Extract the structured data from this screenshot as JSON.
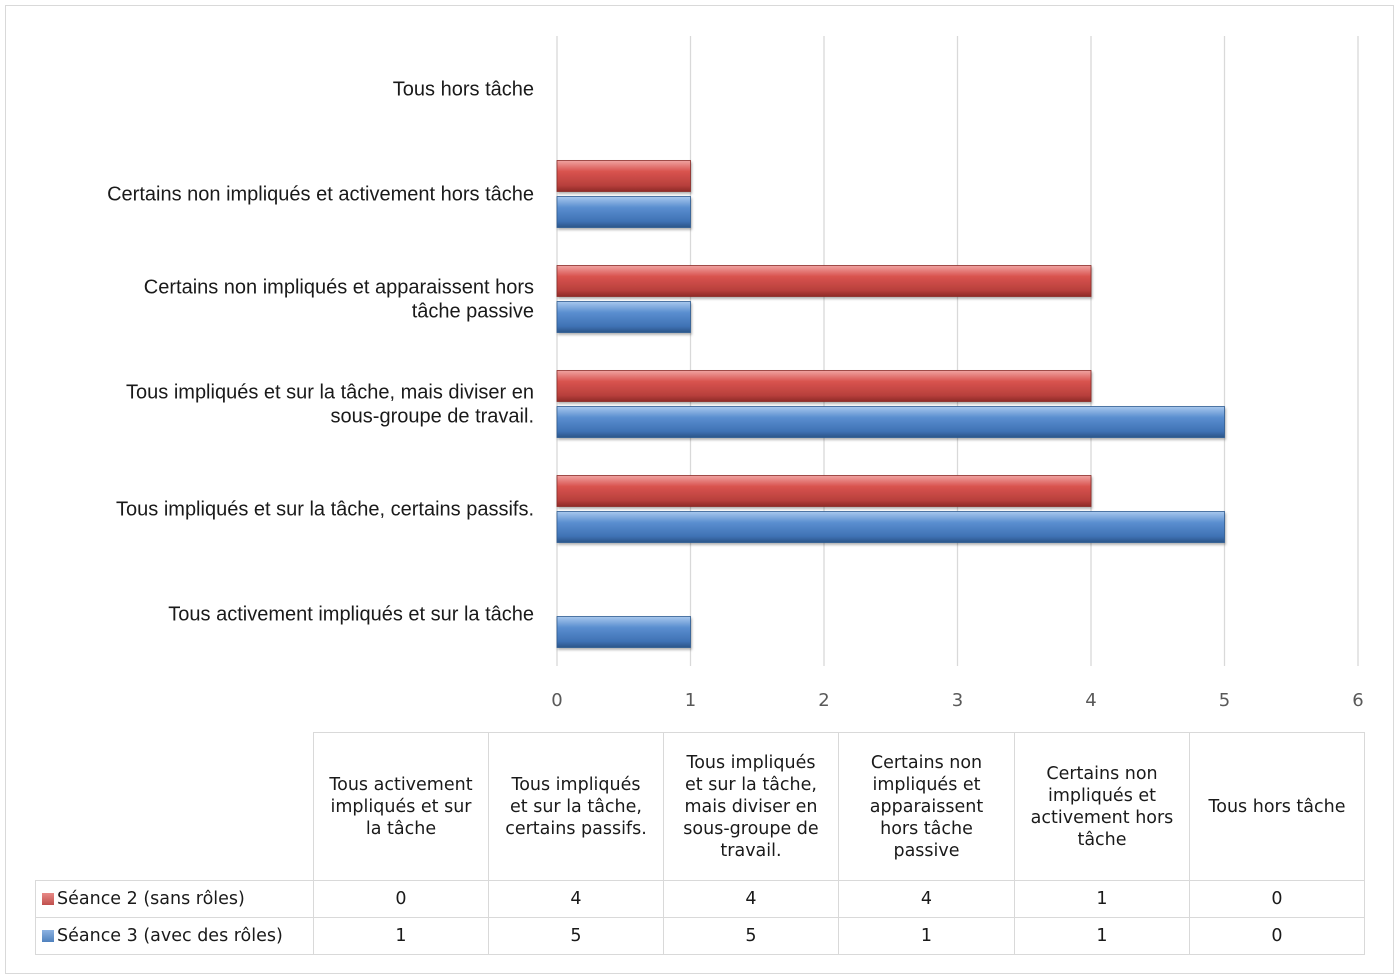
{
  "chart_data": {
    "type": "bar",
    "orientation": "horizontal",
    "categories": [
      "Tous activement impliqués et sur la tâche",
      "Tous impliqués et sur la tâche, certains passifs.",
      "Tous impliqués et sur la tâche, mais diviser en sous-groupe de travail.",
      "Certains non impliqués et apparaissent hors tâche passive",
      "Certains non impliqués et activement hors tâche",
      "Tous hors tâche"
    ],
    "category_label_lines": [
      [
        "Tous activement impliqués et sur la tâche"
      ],
      [
        "Tous impliqués et sur la tâche, certains passifs."
      ],
      [
        "Tous impliqués et sur la tâche, mais diviser en",
        "sous-groupe de travail."
      ],
      [
        "Certains non impliqués et apparaissent hors",
        "tâche passive"
      ],
      [
        "Certains non impliqués et activement hors tâche"
      ],
      [
        "Tous hors tâche"
      ]
    ],
    "series": [
      {
        "name": "Séance 2 (sans rôles)",
        "values": [
          0,
          4,
          4,
          4,
          1,
          0
        ],
        "color": "#c0504d"
      },
      {
        "name": "Séance 3 (avec des rôles)",
        "values": [
          1,
          5,
          5,
          1,
          1,
          0
        ],
        "color": "#4f81bd"
      }
    ],
    "xlim": [
      0,
      6
    ],
    "xticks": [
      "0",
      "1",
      "2",
      "3",
      "4",
      "5",
      "6"
    ],
    "grid": true,
    "legend": "data-table"
  },
  "table": {
    "headers": [
      [
        "Tous activement",
        "impliqués et sur",
        "la tâche"
      ],
      [
        "Tous impliqués",
        "et sur la tâche,",
        "certains passifs."
      ],
      [
        "Tous impliqués",
        "et sur la tâche,",
        "mais diviser en",
        "sous-groupe de",
        "travail."
      ],
      [
        "Certains non",
        "impliqués et",
        "apparaissent",
        "hors tâche",
        "passive"
      ],
      [
        "Certains non",
        "impliqués et",
        "activement hors",
        "tâche"
      ],
      [
        "Tous hors tâche"
      ]
    ],
    "rows": [
      {
        "label": "Séance 2 (sans rôles)",
        "color": "#c0504d",
        "values": [
          "0",
          "4",
          "4",
          "4",
          "1",
          "0"
        ]
      },
      {
        "label": "Séance 3 (avec des rôles)",
        "color": "#4f81bd",
        "values": [
          "1",
          "5",
          "5",
          "1",
          "1",
          "0"
        ]
      }
    ]
  }
}
